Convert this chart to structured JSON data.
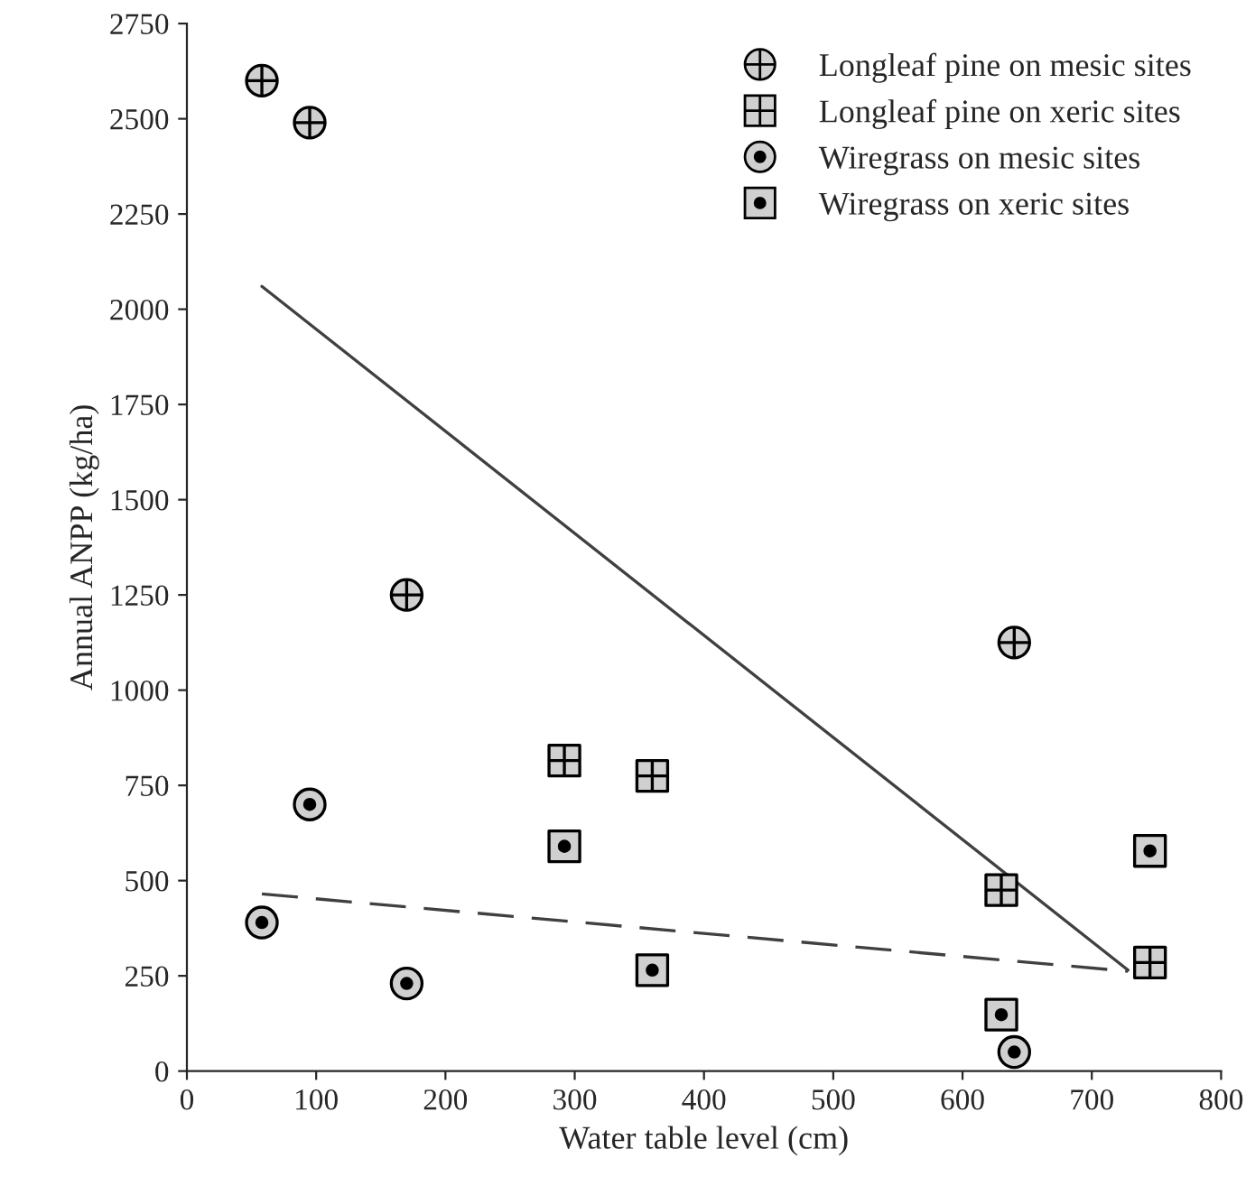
{
  "chart_data": {
    "type": "scatter",
    "xlabel": "Water table level (cm)",
    "ylabel": "Annual ANPP (kg/ha)",
    "xlim": [
      0,
      800
    ],
    "xticks": [
      0,
      100,
      200,
      300,
      400,
      500,
      600,
      700,
      800
    ],
    "ylim": [
      0,
      2750
    ],
    "yticks": [
      0,
      250,
      500,
      750,
      1000,
      1250,
      1500,
      1750,
      2000,
      2250,
      2500,
      2750
    ],
    "grid": false,
    "legend": "top right",
    "series": [
      {
        "name": "Longleaf pine on mesic sites",
        "color": "#d0d0d0",
        "marker": "circle",
        "x": [
          58,
          95,
          170,
          640
        ],
        "values": [
          2600,
          2490,
          1250,
          1125
        ]
      },
      {
        "name": "Longleaf pine on xeric sites",
        "color": "#d0d0d0",
        "marker": "square",
        "x": [
          292,
          360,
          630,
          745
        ],
        "values": [
          815,
          775,
          475,
          285
        ]
      },
      {
        "name": "Wiregrass on mesic sites",
        "color": "#d0d0d0",
        "marker": "circle",
        "x": [
          58,
          95,
          170,
          640
        ],
        "values": [
          390,
          700,
          230,
          50
        ]
      },
      {
        "name": "Wiregrass on xeric sites",
        "color": "#d0d0d0",
        "marker": "square",
        "x": [
          292,
          360,
          630,
          745
        ],
        "values": [
          590,
          265,
          148,
          578
        ]
      },
      {
        "type": "line",
        "color": "#404040",
        "line_style": "solid",
        "marker": "none",
        "x": [
          58,
          728
        ],
        "values": [
          2060,
          265
        ]
      },
      {
        "type": "line",
        "color": "#404040",
        "line_style": "dashed",
        "marker": "none",
        "x": [
          58,
          728
        ],
        "values": [
          465,
          262
        ]
      }
    ]
  }
}
